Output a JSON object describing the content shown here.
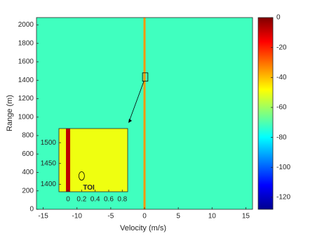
{
  "chart_data": {
    "type": "heatmap",
    "xlabel": "Velocity (m/s)",
    "ylabel": "Range (m)",
    "xlim": [
      -16,
      16
    ],
    "xticks": [
      -15,
      -10,
      -5,
      0,
      5,
      10,
      15
    ],
    "ylim": [
      0,
      2080
    ],
    "yticks": [
      0,
      200,
      400,
      600,
      800,
      1000,
      1200,
      1400,
      1600,
      1800,
      2000
    ],
    "background_level": -72,
    "clutter": {
      "velocity": 0,
      "level": -35
    },
    "target_box": {
      "x": [
        -0.3,
        0.5
      ],
      "y": [
        1390,
        1480
      ]
    },
    "colorbar": {
      "colormap": "jet",
      "clim": [
        -128,
        0
      ],
      "ticks": [
        -120,
        -100,
        -80,
        -60,
        -40,
        -20,
        0
      ]
    },
    "inset": {
      "xlim": [
        -0.135,
        0.88
      ],
      "xticks": [
        0,
        0.2,
        0.4,
        0.6,
        0.8
      ],
      "ylim": [
        1382,
        1534
      ],
      "yticks": [
        1400,
        1450,
        1500
      ],
      "background_level": -50,
      "clutter_level": -8,
      "annotation": {
        "text": "TOI",
        "x": 0.2,
        "y": 1420
      }
    }
  }
}
